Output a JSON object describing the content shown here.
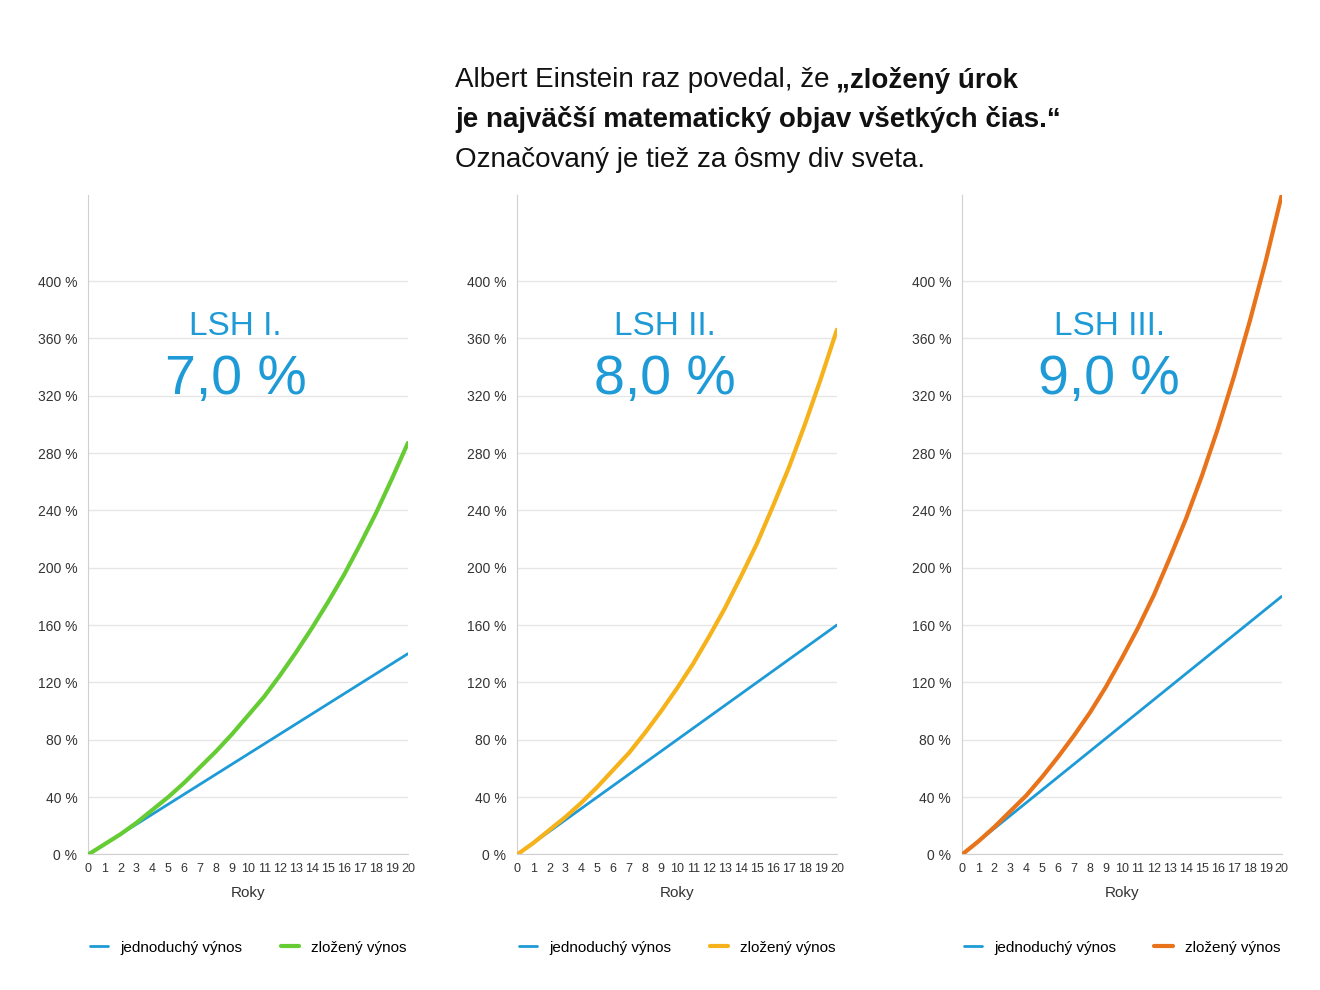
{
  "header": {
    "intro": "Albert Einstein raz povedal, že",
    "quote": "„zložený úrok je najväčší matematický objav všetkých čias.“",
    "note": "Označovaný je tiež za ôsmy div sveta."
  },
  "chart_data": [
    {
      "type": "line",
      "title": "LSH I.",
      "subtitle": "7,0 %",
      "x": [
        0,
        1,
        2,
        3,
        4,
        5,
        6,
        7,
        8,
        9,
        10,
        11,
        12,
        13,
        14,
        15,
        16,
        17,
        18,
        19,
        20
      ],
      "xlabel": "Roky",
      "xlim": [
        0,
        20
      ],
      "xticks": [
        0,
        1,
        2,
        3,
        4,
        5,
        6,
        7,
        8,
        9,
        10,
        11,
        12,
        13,
        14,
        15,
        16,
        17,
        18,
        19,
        20
      ],
      "ylim": [
        0,
        460
      ],
      "yticks": [
        {
          "value": 0,
          "label": "0 %"
        },
        {
          "value": 40,
          "label": "40 %"
        },
        {
          "value": 80,
          "label": "80 %"
        },
        {
          "value": 120,
          "label": "120 %"
        },
        {
          "value": 160,
          "label": "160 %"
        },
        {
          "value": 200,
          "label": "200 %"
        },
        {
          "value": 240,
          "label": "240 %"
        },
        {
          "value": 280,
          "label": "280 %"
        },
        {
          "value": 320,
          "label": "320 %"
        },
        {
          "value": 360,
          "label": "360 %"
        },
        {
          "value": 400,
          "label": "400 %"
        }
      ],
      "grid": true,
      "legend": "bottom",
      "series": [
        {
          "name": "jednoduchý výnos",
          "color": "#1e9ad6",
          "values": [
            0,
            7,
            14,
            21,
            28,
            35,
            42,
            49,
            56,
            63,
            70,
            77,
            84,
            91,
            98,
            105,
            112,
            119,
            126,
            133,
            140
          ]
        },
        {
          "name": "zložený výnos",
          "color": "#66cc33",
          "values": [
            0,
            7,
            14,
            22,
            31,
            40,
            50,
            61,
            72,
            84,
            97,
            110,
            125,
            141,
            158,
            176,
            195,
            216,
            238,
            262,
            287
          ]
        }
      ]
    },
    {
      "type": "line",
      "title": "LSH II.",
      "subtitle": "8,0 %",
      "x": [
        0,
        1,
        2,
        3,
        4,
        5,
        6,
        7,
        8,
        9,
        10,
        11,
        12,
        13,
        14,
        15,
        16,
        17,
        18,
        19,
        20
      ],
      "xlabel": "Roky",
      "xlim": [
        0,
        20
      ],
      "xticks": [
        0,
        1,
        2,
        3,
        4,
        5,
        6,
        7,
        8,
        9,
        10,
        11,
        12,
        13,
        14,
        15,
        16,
        17,
        18,
        19,
        20
      ],
      "ylim": [
        0,
        460
      ],
      "yticks": [
        {
          "value": 0,
          "label": "0 %"
        },
        {
          "value": 40,
          "label": "40 %"
        },
        {
          "value": 80,
          "label": "80 %"
        },
        {
          "value": 120,
          "label": "120 %"
        },
        {
          "value": 160,
          "label": "160 %"
        },
        {
          "value": 200,
          "label": "200 %"
        },
        {
          "value": 240,
          "label": "240 %"
        },
        {
          "value": 280,
          "label": "280 %"
        },
        {
          "value": 320,
          "label": "320 %"
        },
        {
          "value": 360,
          "label": "360 %"
        },
        {
          "value": 400,
          "label": "400 %"
        }
      ],
      "grid": true,
      "legend": "bottom",
      "series": [
        {
          "name": "jednoduchý výnos",
          "color": "#1e9ad6",
          "values": [
            0,
            8,
            16,
            24,
            32,
            40,
            48,
            56,
            64,
            72,
            80,
            88,
            96,
            104,
            112,
            120,
            128,
            136,
            144,
            152,
            160
          ]
        },
        {
          "name": "zložený výnos",
          "color": "#f5b21b",
          "values": [
            0,
            8,
            17,
            26,
            36,
            47,
            59,
            71,
            85,
            100,
            116,
            133,
            152,
            172,
            194,
            217,
            243,
            270,
            300,
            332,
            366
          ]
        }
      ]
    },
    {
      "type": "line",
      "title": "LSH III.",
      "subtitle": "9,0 %",
      "x": [
        0,
        1,
        2,
        3,
        4,
        5,
        6,
        7,
        8,
        9,
        10,
        11,
        12,
        13,
        14,
        15,
        16,
        17,
        18,
        19,
        20
      ],
      "xlabel": "Roky",
      "xlim": [
        0,
        20
      ],
      "xticks": [
        0,
        1,
        2,
        3,
        4,
        5,
        6,
        7,
        8,
        9,
        10,
        11,
        12,
        13,
        14,
        15,
        16,
        17,
        18,
        19,
        20
      ],
      "ylim": [
        0,
        460
      ],
      "yticks": [
        {
          "value": 0,
          "label": "0 %"
        },
        {
          "value": 40,
          "label": "40 %"
        },
        {
          "value": 80,
          "label": "80 %"
        },
        {
          "value": 120,
          "label": "120 %"
        },
        {
          "value": 160,
          "label": "160 %"
        },
        {
          "value": 200,
          "label": "200 %"
        },
        {
          "value": 240,
          "label": "240 %"
        },
        {
          "value": 280,
          "label": "280 %"
        },
        {
          "value": 320,
          "label": "320 %"
        },
        {
          "value": 360,
          "label": "360 %"
        },
        {
          "value": 400,
          "label": "400 %"
        }
      ],
      "grid": true,
      "legend": "bottom",
      "series": [
        {
          "name": "jednoduchý výnos",
          "color": "#1e9ad6",
          "values": [
            0,
            9,
            18,
            27,
            36,
            45,
            54,
            63,
            72,
            81,
            90,
            99,
            108,
            117,
            126,
            135,
            144,
            153,
            162,
            171,
            180
          ]
        },
        {
          "name": "zložený výnos",
          "color": "#e8731a",
          "values": [
            0,
            9,
            19,
            30,
            41,
            54,
            68,
            83,
            99,
            117,
            137,
            158,
            181,
            207,
            234,
            264,
            297,
            333,
            372,
            414,
            460
          ]
        }
      ]
    }
  ]
}
